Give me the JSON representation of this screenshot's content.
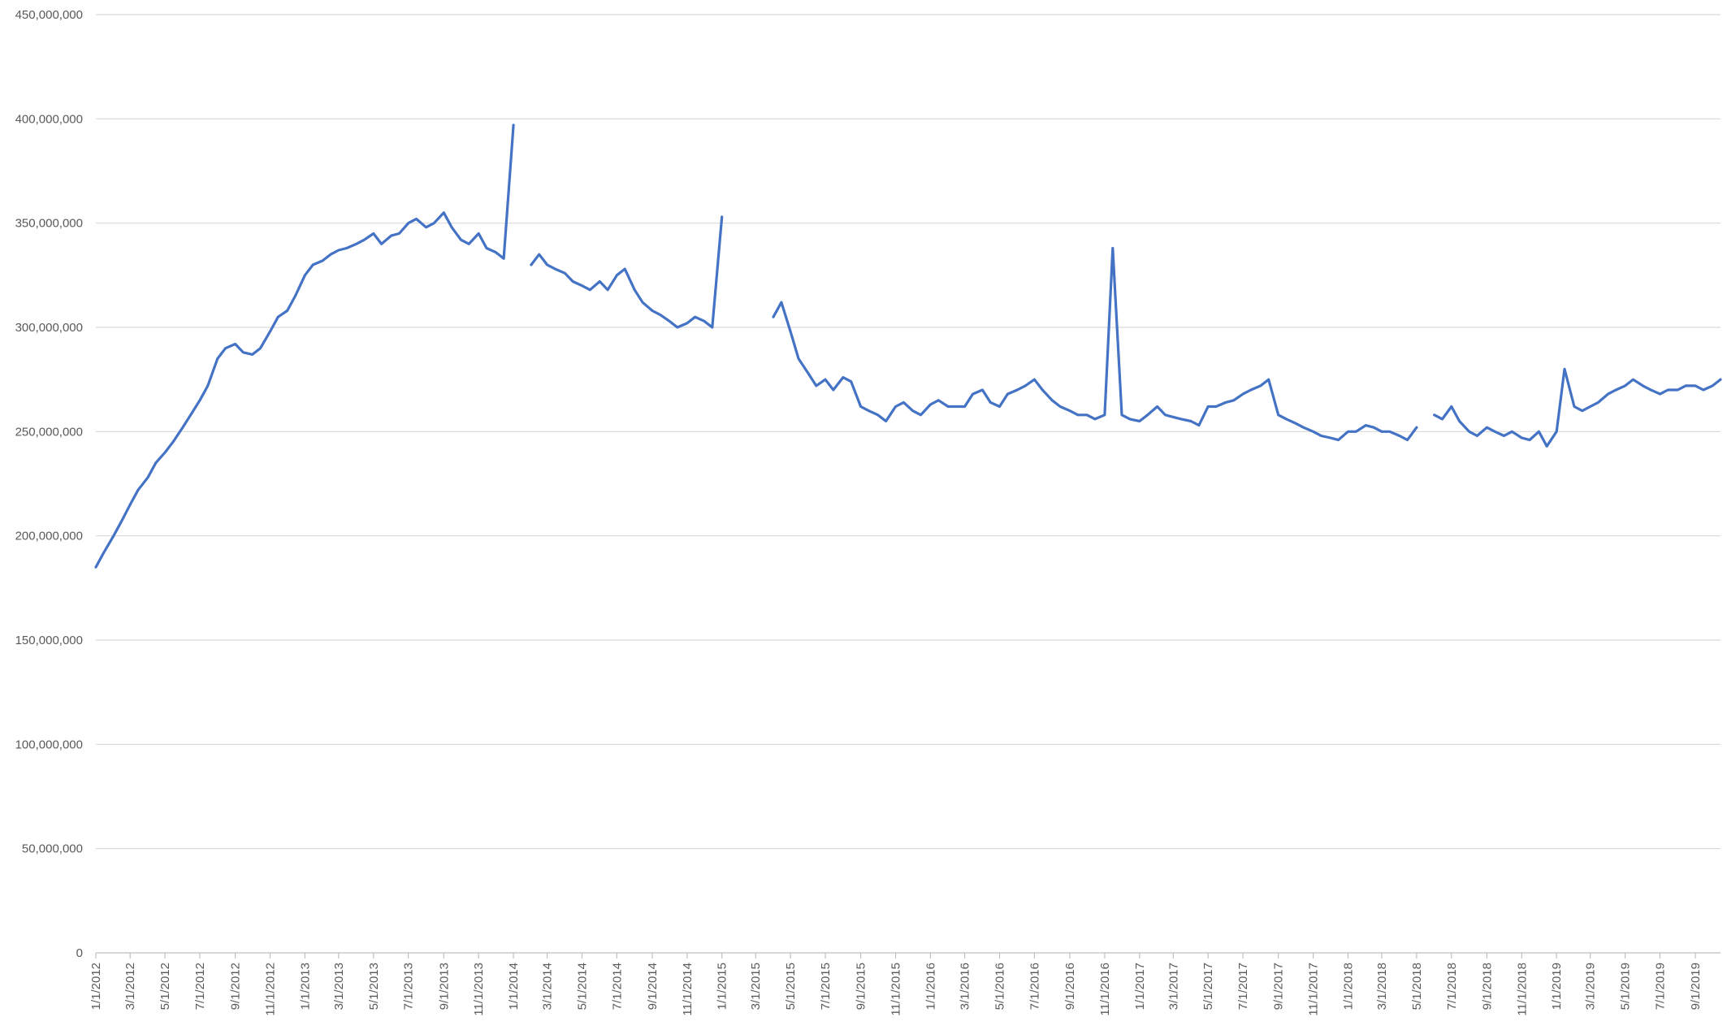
{
  "chart_data": {
    "type": "line",
    "title": "",
    "xlabel": "",
    "ylabel": "",
    "ylim": [
      0,
      450000000
    ],
    "y_ticks": [
      "0",
      "50,000,000",
      "100,000,000",
      "150,000,000",
      "200,000,000",
      "250,000,000",
      "300,000,000",
      "350,000,000",
      "400,000,000",
      "450,000,000"
    ],
    "y_tick_values": [
      0,
      50000000,
      100000000,
      150000000,
      200000000,
      250000000,
      300000000,
      350000000,
      400000000,
      450000000
    ],
    "x_range": [
      "2012-01-01",
      "2019-10-15"
    ],
    "x_ticks": [
      {
        "date": "2012-01-01",
        "label": "1/1/2012"
      },
      {
        "date": "2012-03-01",
        "label": "3/1/2012"
      },
      {
        "date": "2012-05-01",
        "label": "5/1/2012"
      },
      {
        "date": "2012-07-01",
        "label": "7/1/2012"
      },
      {
        "date": "2012-09-01",
        "label": "9/1/2012"
      },
      {
        "date": "2012-11-01",
        "label": "11/1/2012"
      },
      {
        "date": "2013-01-01",
        "label": "1/1/2013"
      },
      {
        "date": "2013-03-01",
        "label": "3/1/2013"
      },
      {
        "date": "2013-05-01",
        "label": "5/1/2013"
      },
      {
        "date": "2013-07-01",
        "label": "7/1/2013"
      },
      {
        "date": "2013-09-01",
        "label": "9/1/2013"
      },
      {
        "date": "2013-11-01",
        "label": "11/1/2013"
      },
      {
        "date": "2014-01-01",
        "label": "1/1/2014"
      },
      {
        "date": "2014-03-01",
        "label": "3/1/2014"
      },
      {
        "date": "2014-05-01",
        "label": "5/1/2014"
      },
      {
        "date": "2014-07-01",
        "label": "7/1/2014"
      },
      {
        "date": "2014-09-01",
        "label": "9/1/2014"
      },
      {
        "date": "2014-11-01",
        "label": "11/1/2014"
      },
      {
        "date": "2015-01-01",
        "label": "1/1/2015"
      },
      {
        "date": "2015-03-01",
        "label": "3/1/2015"
      },
      {
        "date": "2015-05-01",
        "label": "5/1/2015"
      },
      {
        "date": "2015-07-01",
        "label": "7/1/2015"
      },
      {
        "date": "2015-09-01",
        "label": "9/1/2015"
      },
      {
        "date": "2015-11-01",
        "label": "11/1/2015"
      },
      {
        "date": "2016-01-01",
        "label": "1/1/2016"
      },
      {
        "date": "2016-03-01",
        "label": "3/1/2016"
      },
      {
        "date": "2016-05-01",
        "label": "5/1/2016"
      },
      {
        "date": "2016-07-01",
        "label": "7/1/2016"
      },
      {
        "date": "2016-09-01",
        "label": "9/1/2016"
      },
      {
        "date": "2016-11-01",
        "label": "11/1/2016"
      },
      {
        "date": "2017-01-01",
        "label": "1/1/2017"
      },
      {
        "date": "2017-03-01",
        "label": "3/1/2017"
      },
      {
        "date": "2017-05-01",
        "label": "5/1/2017"
      },
      {
        "date": "2017-07-01",
        "label": "7/1/2017"
      },
      {
        "date": "2017-09-01",
        "label": "9/1/2017"
      },
      {
        "date": "2017-11-01",
        "label": "11/1/2017"
      },
      {
        "date": "2018-01-01",
        "label": "1/1/2018"
      },
      {
        "date": "2018-03-01",
        "label": "3/1/2018"
      },
      {
        "date": "2018-05-01",
        "label": "5/1/2018"
      },
      {
        "date": "2018-07-01",
        "label": "7/1/2018"
      },
      {
        "date": "2018-09-01",
        "label": "9/1/2018"
      },
      {
        "date": "2018-11-01",
        "label": "11/1/2018"
      },
      {
        "date": "2019-01-01",
        "label": "1/1/2019"
      },
      {
        "date": "2019-03-01",
        "label": "3/1/2019"
      },
      {
        "date": "2019-05-01",
        "label": "5/1/2019"
      },
      {
        "date": "2019-07-01",
        "label": "7/1/2019"
      },
      {
        "date": "2019-09-01",
        "label": "9/1/2019"
      }
    ],
    "grid": true,
    "legend": "none",
    "series_color": "#4472c4",
    "gridline_color": "#d9d9d9",
    "series": [
      {
        "name": "",
        "segments": [
          {
            "x": [
              "2012-01-01",
              "2012-01-15",
              "2012-02-01",
              "2012-02-15",
              "2012-03-01",
              "2012-03-15",
              "2012-04-01",
              "2012-04-15",
              "2012-05-01",
              "2012-05-15",
              "2012-06-01",
              "2012-06-15",
              "2012-07-01",
              "2012-07-15",
              "2012-08-01",
              "2012-08-15",
              "2012-09-01",
              "2012-09-15",
              "2012-10-01",
              "2012-10-15",
              "2012-11-01",
              "2012-11-15",
              "2012-12-01",
              "2012-12-15",
              "2013-01-01",
              "2013-01-15",
              "2013-02-01",
              "2013-02-15",
              "2013-03-01",
              "2013-03-15",
              "2013-04-01",
              "2013-04-15",
              "2013-05-01",
              "2013-05-15",
              "2013-06-01",
              "2013-06-15",
              "2013-07-01",
              "2013-07-15",
              "2013-08-01",
              "2013-08-15",
              "2013-09-01",
              "2013-09-15",
              "2013-10-01",
              "2013-10-15",
              "2013-11-01",
              "2013-11-15",
              "2013-12-01",
              "2013-12-15",
              "2014-01-01"
            ],
            "y": [
              185000000,
              192000000,
              200000000,
              207000000,
              215000000,
              222000000,
              228000000,
              235000000,
              240000000,
              245000000,
              252000000,
              258000000,
              265000000,
              272000000,
              285000000,
              290000000,
              292000000,
              288000000,
              287000000,
              290000000,
              298000000,
              305000000,
              308000000,
              315000000,
              325000000,
              330000000,
              332000000,
              335000000,
              337000000,
              338000000,
              340000000,
              342000000,
              345000000,
              340000000,
              344000000,
              345000000,
              350000000,
              352000000,
              348000000,
              350000000,
              355000000,
              348000000,
              342000000,
              340000000,
              345000000,
              338000000,
              336000000,
              333000000,
              397000000
            ]
          },
          {
            "x": [
              "2014-02-01",
              "2014-02-15",
              "2014-03-01",
              "2014-03-15",
              "2014-04-01",
              "2014-04-15",
              "2014-05-01",
              "2014-05-15",
              "2014-06-01",
              "2014-06-15",
              "2014-07-01",
              "2014-07-15",
              "2014-08-01",
              "2014-08-15",
              "2014-09-01",
              "2014-09-15",
              "2014-10-01",
              "2014-10-15",
              "2014-11-01",
              "2014-11-15",
              "2014-12-01",
              "2014-12-15",
              "2015-01-01"
            ],
            "y": [
              330000000,
              335000000,
              330000000,
              328000000,
              326000000,
              322000000,
              320000000,
              318000000,
              322000000,
              318000000,
              325000000,
              328000000,
              318000000,
              312000000,
              308000000,
              306000000,
              303000000,
              300000000,
              302000000,
              305000000,
              303000000,
              300000000,
              353000000
            ]
          },
          {
            "x": [
              "2015-04-01",
              "2015-04-15",
              "2015-05-01",
              "2015-05-15",
              "2015-06-01",
              "2015-06-15",
              "2015-07-01",
              "2015-07-15",
              "2015-08-01",
              "2015-08-15",
              "2015-09-01",
              "2015-09-15",
              "2015-10-01",
              "2015-10-15",
              "2015-11-01",
              "2015-11-15",
              "2015-12-01",
              "2015-12-15",
              "2016-01-01",
              "2016-01-15",
              "2016-02-01",
              "2016-02-15",
              "2016-03-01",
              "2016-03-15",
              "2016-04-01",
              "2016-04-15",
              "2016-05-01",
              "2016-05-15",
              "2016-06-01",
              "2016-06-15",
              "2016-07-01",
              "2016-07-15",
              "2016-08-01",
              "2016-08-15",
              "2016-09-01",
              "2016-09-15",
              "2016-10-01",
              "2016-10-15",
              "2016-11-01",
              "2016-11-15",
              "2016-12-01",
              "2016-12-15",
              "2017-01-01",
              "2017-01-15",
              "2017-02-01",
              "2017-02-15",
              "2017-03-01",
              "2017-03-15",
              "2017-04-01",
              "2017-04-15",
              "2017-05-01",
              "2017-05-15",
              "2017-06-01",
              "2017-06-15",
              "2017-07-01",
              "2017-07-15",
              "2017-08-01",
              "2017-08-15",
              "2017-09-01",
              "2017-09-15",
              "2017-10-01",
              "2017-10-15",
              "2017-11-01",
              "2017-11-15",
              "2017-12-01",
              "2017-12-15",
              "2018-01-01",
              "2018-01-15",
              "2018-02-01",
              "2018-02-15",
              "2018-03-01",
              "2018-03-15",
              "2018-04-01",
              "2018-04-15",
              "2018-05-01"
            ],
            "y": [
              305000000,
              312000000,
              298000000,
              285000000,
              278000000,
              272000000,
              275000000,
              270000000,
              276000000,
              274000000,
              262000000,
              260000000,
              258000000,
              255000000,
              262000000,
              264000000,
              260000000,
              258000000,
              263000000,
              265000000,
              262000000,
              262000000,
              262000000,
              268000000,
              270000000,
              264000000,
              262000000,
              268000000,
              270000000,
              272000000,
              275000000,
              270000000,
              265000000,
              262000000,
              260000000,
              258000000,
              258000000,
              256000000,
              258000000,
              338000000,
              258000000,
              256000000,
              255000000,
              258000000,
              262000000,
              258000000,
              257000000,
              256000000,
              255000000,
              253000000,
              262000000,
              262000000,
              264000000,
              265000000,
              268000000,
              270000000,
              272000000,
              275000000,
              258000000,
              256000000,
              254000000,
              252000000,
              250000000,
              248000000,
              247000000,
              246000000,
              250000000,
              250000000,
              253000000,
              252000000,
              250000000,
              250000000,
              248000000,
              246000000,
              252000000
            ]
          },
          {
            "x": [
              "2018-06-01",
              "2018-06-15",
              "2018-07-01",
              "2018-07-15",
              "2018-08-01",
              "2018-08-15",
              "2018-09-01",
              "2018-09-15",
              "2018-10-01",
              "2018-10-15",
              "2018-11-01",
              "2018-11-15",
              "2018-12-01",
              "2018-12-15",
              "2019-01-01",
              "2019-01-15",
              "2019-02-01",
              "2019-02-15",
              "2019-03-01",
              "2019-03-15",
              "2019-04-01",
              "2019-04-15",
              "2019-05-01",
              "2019-05-15",
              "2019-06-01",
              "2019-06-15",
              "2019-07-01",
              "2019-07-15",
              "2019-08-01",
              "2019-08-15",
              "2019-09-01",
              "2019-09-15",
              "2019-10-01",
              "2019-10-15"
            ],
            "y": [
              258000000,
              256000000,
              262000000,
              255000000,
              250000000,
              248000000,
              252000000,
              250000000,
              248000000,
              250000000,
              247000000,
              246000000,
              250000000,
              243000000,
              250000000,
              280000000,
              262000000,
              260000000,
              262000000,
              264000000,
              268000000,
              270000000,
              272000000,
              275000000,
              272000000,
              270000000,
              268000000,
              270000000,
              270000000,
              272000000,
              272000000,
              270000000,
              272000000,
              275000000
            ]
          }
        ]
      }
    ]
  }
}
